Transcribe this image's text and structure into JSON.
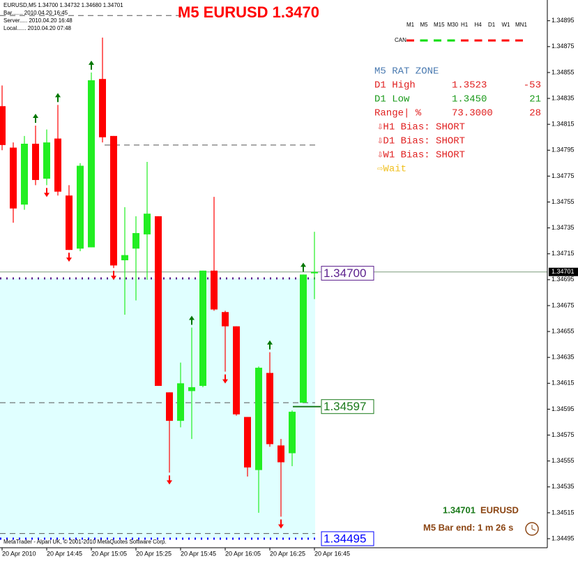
{
  "chart_data": {
    "type": "candlestick",
    "title": "M5 EURUSD 1.3470",
    "info": [
      "EURUSD,M5  1.34700 1.34732 1.34680 1.34701",
      "Bar....... 2010.04.20 16:45",
      "Server..... 2010.04.20 16:48",
      "Local...... 2010.04.20 07:48"
    ],
    "timeframes": [
      "M1",
      "M5",
      "M15",
      "M30",
      "H1",
      "H4",
      "D1",
      "W1",
      "MN1"
    ],
    "can_label": "CAN",
    "can_colors": [
      "#ff0000",
      "#00dd00",
      "#00dd00",
      "#00dd00",
      "#ff0000",
      "#ff0000",
      "#ff0000",
      "#ff0000",
      "#ff0000"
    ],
    "rat_zone": {
      "title": "M5 RAT ZONE",
      "rows": [
        {
          "label": "D1 High",
          "value": "1.3523",
          "points": "-53",
          "color": "#e02020"
        },
        {
          "label": "D1 Low",
          "value": "1.3450",
          "points": "21",
          "color": "#1a9a1a"
        },
        {
          "label": "Range| %",
          "value": "73.3000",
          "points": "28",
          "color": "#e02020"
        }
      ],
      "bias": [
        "⇩H1 Bias: SHORT",
        "⇩D1 Bias: SHORT",
        "⇩W1 Bias: SHORT"
      ],
      "signal": "⇨Wait"
    },
    "footer_price": "1.34701",
    "footer_symbol": "EURUSD",
    "bar_end": "M5 Bar end: 1 m 26 s",
    "copyright": "MetaTrader - Alpari UK, © 2001-2010 MetaQuotes Software Corp.",
    "bull_color": "#22ee22",
    "bear_color": "#ff0000",
    "open": [
      1.34829,
      1.34797,
      1.34753,
      1.348,
      1.34773,
      1.34804,
      1.3476,
      1.34719,
      1.3472,
      1.3485,
      1.34806,
      1.3471,
      1.34719,
      1.3473,
      1.34744,
      1.34608,
      1.34586,
      1.34609,
      1.34613,
      1.34702,
      1.3467,
      1.34659,
      1.34589,
      1.34548,
      1.34623,
      1.34567,
      1.34561,
      1.346,
      1.347
    ],
    "high": [
      1.34845,
      1.34801,
      1.34806,
      1.34814,
      1.34811,
      1.3483,
      1.34768,
      1.34785,
      1.34855,
      1.34882,
      1.34806,
      1.34751,
      1.34744,
      1.34786,
      1.34744,
      1.34608,
      1.34631,
      1.34658,
      1.34702,
      1.34759,
      1.34671,
      1.34659,
      1.34589,
      1.34628,
      1.34639,
      1.34572,
      1.34594,
      1.34699,
      1.34732
    ],
    "low": [
      1.34795,
      1.34739,
      1.34749,
      1.34768,
      1.34768,
      1.3476,
      1.34718,
      1.34717,
      1.3472,
      1.34801,
      1.34704,
      1.34668,
      1.34679,
      1.34695,
      1.34613,
      1.34546,
      1.34581,
      1.34572,
      1.34612,
      1.34671,
      1.34624,
      1.3459,
      1.34543,
      1.34515,
      1.34566,
      1.34512,
      1.34551,
      1.346,
      1.3468
    ],
    "close": [
      1.34799,
      1.3475,
      1.348,
      1.34772,
      1.34801,
      1.34763,
      1.34718,
      1.34783,
      1.34849,
      1.34805,
      1.34706,
      1.34714,
      1.34731,
      1.34746,
      1.34613,
      1.34586,
      1.34615,
      1.34612,
      1.34702,
      1.34672,
      1.34659,
      1.34591,
      1.3455,
      1.34627,
      1.34568,
      1.34554,
      1.34593,
      1.34699,
      1.34701
    ],
    "up_arrows": [
      3,
      5,
      8,
      17,
      24,
      27
    ],
    "down_arrows": [
      4,
      6,
      10,
      15,
      20,
      25
    ],
    "up_arrow_color": "#007700",
    "down_arrow_color": "#ff0000",
    "dashed_levels": [
      1.34899,
      1.34799,
      1.346,
      1.34499
    ],
    "zone": {
      "top": 1.34696,
      "bottom": 1.34495,
      "color": "#e0ffff"
    },
    "price_labels": [
      {
        "value": 1.347,
        "label": "1.34700",
        "color": "#5a1e8c"
      },
      {
        "value": 1.34597,
        "label": "1.34597",
        "color": "#1a7a1a"
      },
      {
        "value": 1.34495,
        "label": "1.34495",
        "color": "#0000ff"
      }
    ],
    "current_price": 1.34701,
    "ylim": [
      1.34488,
      1.34911
    ],
    "yticks": [
      1.34895,
      1.34875,
      1.34855,
      1.34835,
      1.34815,
      1.34795,
      1.34775,
      1.34755,
      1.34735,
      1.34715,
      1.34695,
      1.34675,
      1.34655,
      1.34635,
      1.34615,
      1.34595,
      1.34575,
      1.34555,
      1.34535,
      1.34515,
      1.34495
    ],
    "xticks": [
      {
        "value": 0,
        "label": "20 Apr 2010"
      },
      {
        "value": 4,
        "label": "20 Apr 14:45"
      },
      {
        "value": 8,
        "label": "20 Apr 15:05"
      },
      {
        "value": 12,
        "label": "20 Apr 15:25"
      },
      {
        "value": 16,
        "label": "20 Apr 15:45"
      },
      {
        "value": 20,
        "label": "20 Apr 16:05"
      },
      {
        "value": 24,
        "label": "20 Apr 16:25"
      },
      {
        "value": 28,
        "label": "20 Apr 16:45"
      }
    ]
  }
}
